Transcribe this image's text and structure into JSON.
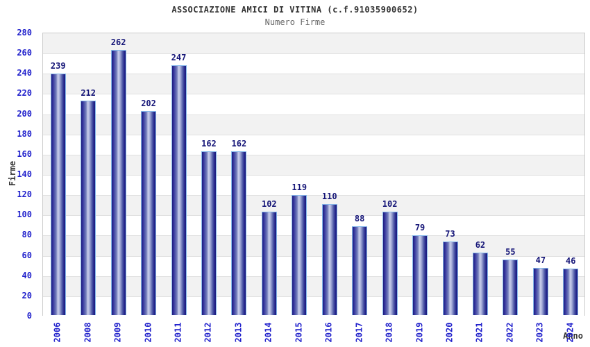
{
  "header": {
    "title": "ASSOCIAZIONE AMICI DI VITINA (c.f.91035900652)",
    "subtitle": "Numero Firme"
  },
  "chart_data": {
    "type": "bar",
    "title": "ASSOCIAZIONE AMICI DI VITINA (c.f.91035900652)",
    "subtitle": "Numero Firme",
    "categories": [
      "2006",
      "2008",
      "2009",
      "2010",
      "2011",
      "2012",
      "2013",
      "2014",
      "2015",
      "2016",
      "2017",
      "2018",
      "2019",
      "2020",
      "2021",
      "2022",
      "2023",
      "2024"
    ],
    "values": [
      239,
      212,
      262,
      202,
      247,
      162,
      162,
      102,
      119,
      110,
      88,
      102,
      79,
      73,
      62,
      55,
      47,
      46
    ],
    "xlabel": "Anno",
    "ylabel": "Firme",
    "ylim": [
      0,
      280
    ],
    "ytick_step": 20,
    "grid": true,
    "legend": false,
    "value_labels": true,
    "colors": {
      "bar_dark": "#1d1d7c",
      "bar_highlight": "#c9cdea",
      "bar_border": "#86b8ea",
      "tick_label": "#2222cc",
      "value_label": "#161678",
      "band": "#f2f2f2",
      "gridline": "#e0e0e0",
      "plot_border": "#cccccc",
      "title": "#333333",
      "subtitle": "#666666"
    }
  }
}
